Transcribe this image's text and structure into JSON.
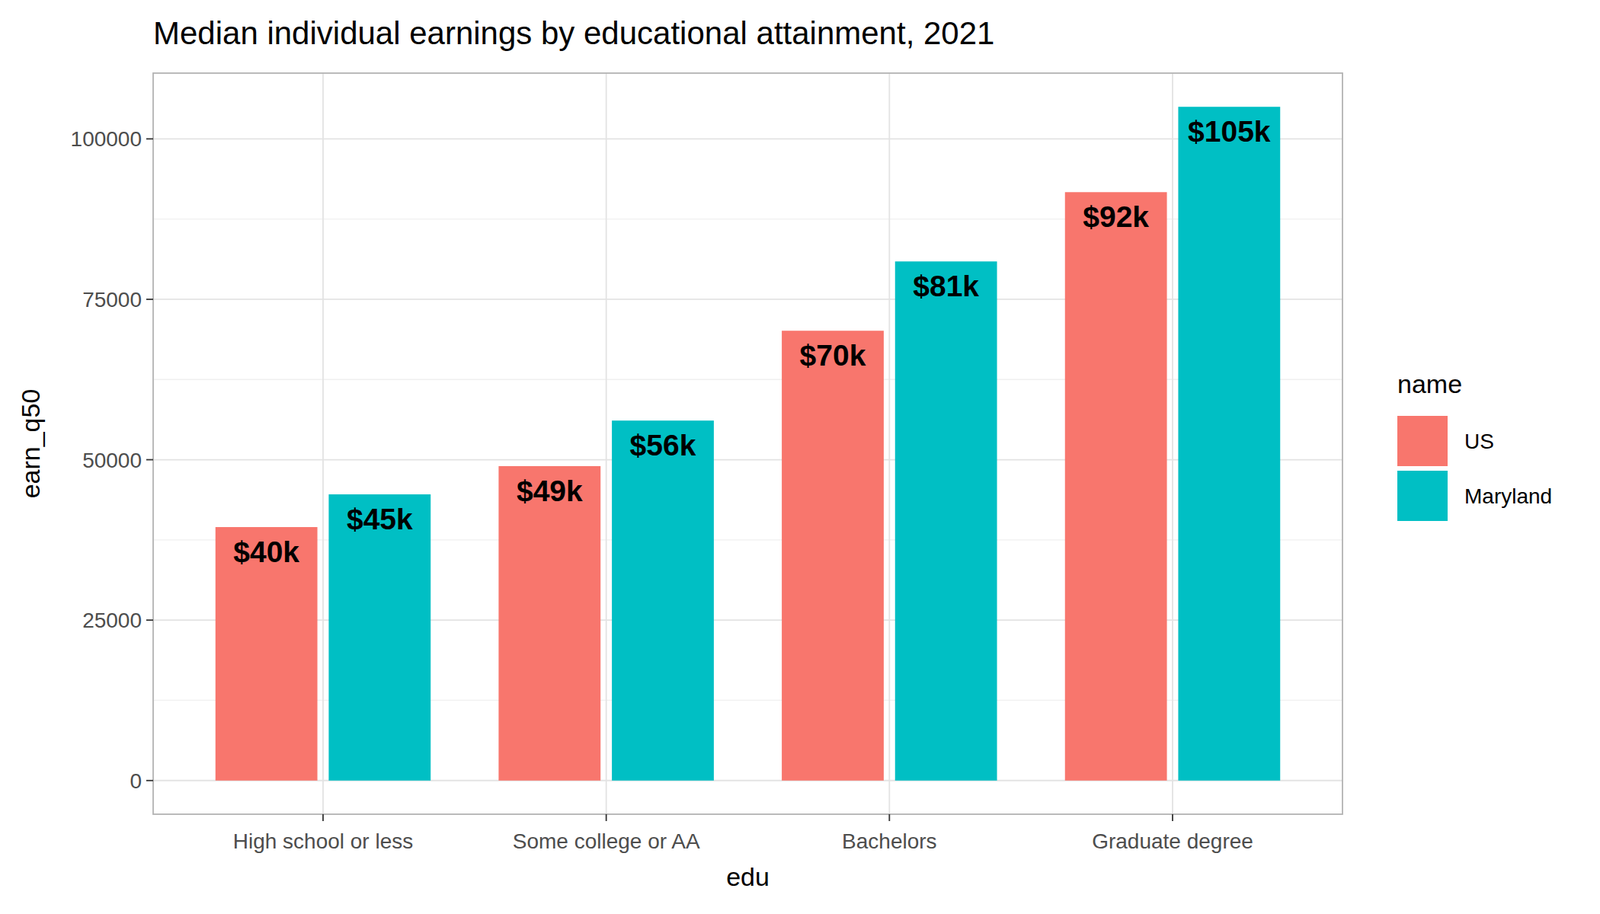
{
  "chart_data": {
    "type": "bar",
    "title": "Median individual earnings by educational attainment, 2021",
    "x_label": "edu",
    "y_label": "earn_q50",
    "legend_title": "name",
    "categories": [
      "High school or less",
      "Some college or AA",
      "Bachelors",
      "Graduate degree"
    ],
    "series": [
      {
        "name": "US",
        "color": "#F8766D",
        "values": [
          39500,
          49000,
          70100,
          91700
        ],
        "value_labels": [
          "$40k",
          "$49k",
          "$70k",
          "$92k"
        ]
      },
      {
        "name": "Maryland",
        "color": "#00BFC4",
        "values": [
          44600,
          56100,
          80900,
          105000
        ],
        "value_labels": [
          "$45k",
          "$56k",
          "$81k",
          "$105k"
        ]
      }
    ],
    "ylim": [
      -5250,
      110250
    ],
    "yticks": [
      0,
      25000,
      50000,
      75000,
      100000
    ],
    "grid": true,
    "data_labels": true,
    "legend": "right"
  }
}
